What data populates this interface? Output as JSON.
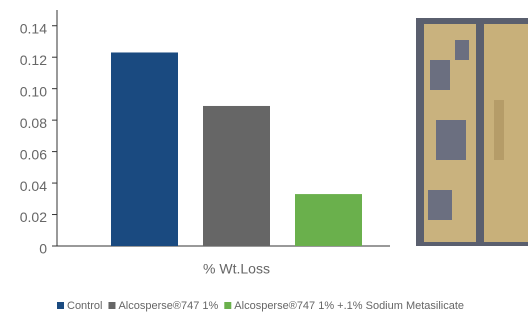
{
  "chart_data": {
    "type": "bar",
    "categories": [
      "% Wt.Loss"
    ],
    "series": [
      {
        "name": "Control",
        "color": "#1a4a80",
        "values": [
          0.123
        ]
      },
      {
        "name": "Alcosperse®747 1%",
        "color": "#666666",
        "values": [
          0.089
        ]
      },
      {
        "name": "Alcosperse®747 1% +.1% Sodium Metasilicate",
        "color": "#6ab04c",
        "values": [
          0.033
        ]
      }
    ],
    "ylim": [
      0,
      0.15
    ],
    "yticks": [
      0,
      0.02,
      0.04,
      0.06,
      0.08,
      {
        "value": 0.1,
        "label": "0.10"
      },
      0.12,
      0.14
    ]
  }
}
